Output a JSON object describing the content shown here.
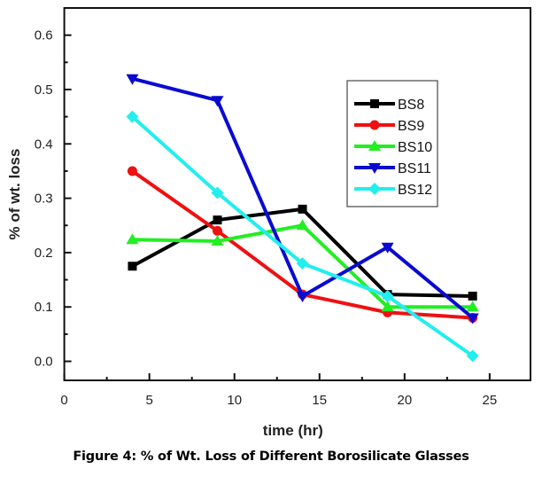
{
  "caption": "Figure 4: % of Wt. Loss of Different Borosilicate Glasses",
  "chart_data": {
    "type": "line",
    "title": "",
    "xlabel": "time (hr)",
    "ylabel": "% of wt. loss",
    "xlim": [
      0,
      27.4
    ],
    "ylim": [
      -0.035,
      0.65
    ],
    "xticks": [
      0,
      5,
      10,
      15,
      20,
      25
    ],
    "xtick_labels": [
      "0",
      "5",
      "10",
      "15",
      "20",
      "25"
    ],
    "xminor_ticks": [
      2.5,
      7.5,
      12.5,
      17.5,
      22.5
    ],
    "yticks": [
      0.0,
      0.1,
      0.2,
      0.3,
      0.4,
      0.5,
      0.6
    ],
    "ytick_labels": [
      "0.0",
      "0.1",
      "0.2",
      "0.3",
      "0.4",
      "0.5",
      "0.6"
    ],
    "yminor_ticks": [
      0.05,
      0.15,
      0.25,
      0.35,
      0.45,
      0.55
    ],
    "grid": false,
    "legend_position": "upper-right (inside)",
    "x": [
      4,
      9,
      14,
      19,
      24
    ],
    "series": [
      {
        "name": "BS8",
        "color": "#000000",
        "marker": "square",
        "values": [
          0.175,
          0.26,
          0.28,
          0.123,
          0.12
        ]
      },
      {
        "name": "BS9",
        "color": "#ee1111",
        "marker": "circle",
        "values": [
          0.35,
          0.24,
          0.123,
          0.09,
          0.08
        ]
      },
      {
        "name": "BS10",
        "color": "#22ee22",
        "marker": "triangle-up",
        "values": [
          0.224,
          0.221,
          0.25,
          0.1,
          0.1
        ]
      },
      {
        "name": "BS11",
        "color": "#0a0ad0",
        "marker": "triangle-down",
        "values": [
          0.52,
          0.48,
          0.12,
          0.21,
          0.08
        ]
      },
      {
        "name": "BS12",
        "color": "#22eeee",
        "marker": "diamond",
        "values": [
          0.45,
          0.31,
          0.18,
          0.12,
          0.01
        ]
      }
    ]
  }
}
